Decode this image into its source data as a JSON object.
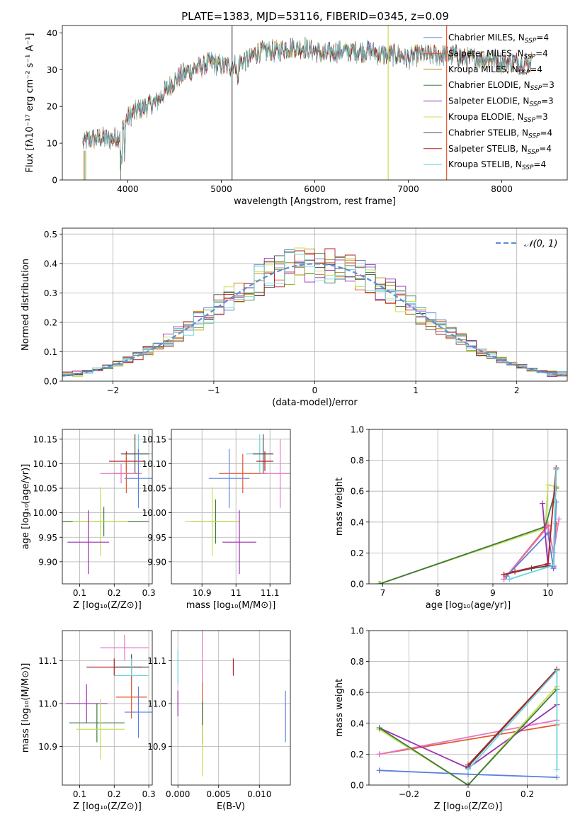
{
  "figure": {
    "title": "PLATE=1383, MJD=53116, FIBERID=0345, z=0.09"
  },
  "colors": {
    "chabrier_miles": "#4a7fbf",
    "salpeter_miles": "#e4572e",
    "kroupa_miles": "#b8860b",
    "chabrier_elodie": "#3d7a3d",
    "salpeter_elodie": "#9b30b0",
    "kroupa_elodie": "#c7df53",
    "chabrier_stelib": "#4d4d4d",
    "salpeter_stelib": "#b22222",
    "kroupa_stelib": "#6fd3df",
    "pink": "#e377c2",
    "blue2": "#5b7fde",
    "gauss": "#5b8fd6",
    "grid": "#b0b0b0"
  },
  "chart_data": [
    {
      "id": "spectrum",
      "type": "line",
      "xlabel": "wavelength [Angstrom, rest frame]",
      "ylabel": "Flux [fλ10⁻¹⁷ erg cm⁻² s⁻¹ A⁻¹]",
      "xlim": [
        3300,
        8700
      ],
      "ylim": [
        0,
        42
      ],
      "xticks": [
        4000,
        5000,
        6000,
        7000,
        8000
      ],
      "yticks": [
        0,
        10,
        20,
        30,
        40
      ],
      "grid": false,
      "legend_position": "top-right",
      "continuum": {
        "x": [
          3500,
          3600,
          3700,
          3800,
          3900,
          3950,
          4000,
          4100,
          4200,
          4300,
          4400,
          4500,
          4600,
          4700,
          4800,
          4900,
          5000,
          5100,
          5200,
          5300,
          5400,
          5500,
          5600,
          5700,
          5800,
          5900,
          6000,
          6100,
          6200,
          6300,
          6400,
          6500,
          6600,
          6700,
          6800,
          6900,
          7000,
          7100,
          7200,
          7300,
          7400,
          7500,
          7600,
          7700,
          7800,
          7900,
          8000,
          8100,
          8200,
          8300
        ],
        "y": [
          10,
          11,
          11.5,
          11,
          12,
          14,
          17,
          19,
          20,
          21,
          24,
          27,
          29,
          30,
          31,
          32,
          31,
          31,
          32,
          33,
          35,
          35,
          35,
          36,
          36,
          36,
          35,
          34,
          35,
          35,
          35,
          35,
          35,
          34,
          34,
          34,
          33,
          34,
          34,
          34,
          34,
          34,
          33,
          33,
          33,
          33,
          32,
          32,
          32,
          32
        ]
      },
      "series": [
        {
          "name": "Chabrier MILES, N$_{SSP}$=4",
          "label_main": "Chabrier MILES, N",
          "label_sub": "SSP",
          "label_tail": "=4",
          "color_key": "chabrier_miles"
        },
        {
          "name": "Salpeter MILES, N$_{SSP}$=4",
          "label_main": "Salpeter MILES, N",
          "label_sub": "SSP",
          "label_tail": "=4",
          "color_key": "salpeter_miles"
        },
        {
          "name": "Kroupa MILES, N$_{SSP}$=4",
          "label_main": "Kroupa MILES, N",
          "label_sub": "SSP",
          "label_tail": "=4",
          "color_key": "kroupa_miles"
        },
        {
          "name": "Chabrier ELODIE, N$_{SSP}$=3",
          "label_main": "Chabrier ELODIE, N",
          "label_sub": "SSP",
          "label_tail": "=3",
          "color_key": "chabrier_elodie"
        },
        {
          "name": "Salpeter ELODIE, N$_{SSP}$=3",
          "label_main": "Salpeter ELODIE, N",
          "label_sub": "SSP",
          "label_tail": "=3",
          "color_key": "salpeter_elodie"
        },
        {
          "name": "Kroupa ELODIE, N$_{SSP}$=3",
          "label_main": "Kroupa ELODIE, N",
          "label_sub": "SSP",
          "label_tail": "=3",
          "color_key": "kroupa_elodie"
        },
        {
          "name": "Chabrier STELIB, N$_{SSP}$=4",
          "label_main": "Chabrier STELIB, N",
          "label_sub": "SSP",
          "label_tail": "=4",
          "color_key": "chabrier_stelib"
        },
        {
          "name": "Salpeter STELIB, N$_{SSP}$=4",
          "label_main": "Salpeter STELIB, N",
          "label_sub": "SSP",
          "label_tail": "=4",
          "color_key": "salpeter_stelib"
        },
        {
          "name": "Kroupa STELIB, N$_{SSP}$=4",
          "label_main": "Kroupa STELIB, N",
          "label_sub": "SSP",
          "label_tail": "=4",
          "color_key": "kroupa_stelib"
        }
      ],
      "vertical_lines": [
        {
          "x": 5115,
          "color_key": "chabrier_stelib"
        },
        {
          "x": 6785,
          "color_key": "kroupa_elodie"
        },
        {
          "x": 7410,
          "color_key": "salpeter_miles"
        }
      ]
    },
    {
      "id": "residuals",
      "type": "line",
      "xlabel": "(data-model)/error",
      "ylabel": "Normed distribution",
      "xlim": [
        -2.5,
        2.5
      ],
      "ylim": [
        0,
        0.52
      ],
      "xticks": [
        -2,
        -1,
        0,
        1,
        2
      ],
      "yticks": [
        0.0,
        0.1,
        0.2,
        0.3,
        0.4,
        0.5
      ],
      "grid": true,
      "legend_position": "top-right",
      "gaussian_label": "𝒩(0, 1)",
      "bin_width": 0.1
    },
    {
      "id": "age_vs_Z",
      "type": "scatter",
      "xlabel": "Z [log₁₀(Z/Z⊙)]",
      "ylabel": "age  [log₁₀(age/yr)]",
      "xlim": [
        0.05,
        0.31
      ],
      "ylim": [
        9.855,
        10.17
      ],
      "xticks": [
        0.1,
        0.2,
        0.3
      ],
      "yticks": [
        9.9,
        9.95,
        10.0,
        10.05,
        10.1,
        10.15
      ],
      "grid": true,
      "points": [
        {
          "x": 0.27,
          "xerr": 0.05,
          "y": 10.12,
          "yerr": 0.04,
          "color_key": "kroupa_stelib"
        },
        {
          "x": 0.26,
          "xerr": 0.04,
          "y": 10.12,
          "yerr": 0.04,
          "color_key": "chabrier_stelib"
        },
        {
          "x": 0.235,
          "xerr": 0.05,
          "y": 10.105,
          "yerr": 0.02,
          "color_key": "salpeter_stelib"
        },
        {
          "x": 0.235,
          "xerr": 0.035,
          "y": 10.08,
          "yerr": 0.04,
          "color_key": "salpeter_miles"
        },
        {
          "x": 0.22,
          "xerr": 0.06,
          "y": 10.08,
          "yerr": 0.02,
          "color_key": "pink"
        },
        {
          "x": 0.27,
          "xerr": 0.04,
          "y": 10.07,
          "yerr": 0.06,
          "color_key": "blue2"
        },
        {
          "x": 0.17,
          "xerr": 0.13,
          "y": 9.982,
          "yerr": 0.03,
          "color_key": "chabrier_elodie"
        },
        {
          "x": 0.16,
          "xerr": 0.08,
          "y": 9.982,
          "yerr": 0.07,
          "color_key": "kroupa_elodie"
        },
        {
          "x": 0.125,
          "xerr": 0.06,
          "y": 9.94,
          "yerr": 0.065,
          "color_key": "salpeter_elodie"
        }
      ]
    },
    {
      "id": "age_vs_mass",
      "type": "scatter",
      "xlabel": "mass [log₁₀(M/M⊙)]",
      "ylabel": "",
      "xlim": [
        10.81,
        11.16
      ],
      "ylim": [
        9.855,
        10.17
      ],
      "xticks": [
        10.9,
        11.0,
        11.1
      ],
      "yticks": [
        9.9,
        9.95,
        10.0,
        10.05,
        10.1,
        10.15
      ],
      "grid": true,
      "points": [
        {
          "x": 11.07,
          "xerr": 0.04,
          "y": 10.12,
          "yerr": 0.04,
          "color_key": "kroupa_stelib"
        },
        {
          "x": 11.08,
          "xerr": 0.03,
          "y": 10.12,
          "yerr": 0.04,
          "color_key": "chabrier_stelib"
        },
        {
          "x": 11.085,
          "xerr": 0.025,
          "y": 10.105,
          "yerr": 0.02,
          "color_key": "salpeter_stelib"
        },
        {
          "x": 11.02,
          "xerr": 0.07,
          "y": 10.08,
          "yerr": 0.04,
          "color_key": "salpeter_miles"
        },
        {
          "x": 11.13,
          "xerr": 0.06,
          "y": 10.08,
          "yerr": 0.07,
          "color_key": "pink"
        },
        {
          "x": 10.98,
          "xerr": 0.06,
          "y": 10.07,
          "yerr": 0.06,
          "color_key": "blue2"
        },
        {
          "x": 10.94,
          "xerr": 0.07,
          "y": 9.982,
          "yerr": 0.045,
          "color_key": "chabrier_elodie"
        },
        {
          "x": 10.93,
          "xerr": 0.08,
          "y": 9.982,
          "yerr": 0.07,
          "color_key": "kroupa_elodie"
        },
        {
          "x": 11.01,
          "xerr": 0.05,
          "y": 9.94,
          "yerr": 0.065,
          "color_key": "salpeter_elodie"
        }
      ]
    },
    {
      "id": "weight_vs_age",
      "type": "line",
      "xlabel": "age  [log₁₀(age/yr)]",
      "ylabel": "mass weight",
      "xlim": [
        6.75,
        10.35
      ],
      "ylim": [
        0,
        1.0
      ],
      "xticks": [
        7,
        8,
        9,
        10
      ],
      "yticks": [
        0.0,
        0.2,
        0.4,
        0.6,
        0.8,
        1.0
      ],
      "grid": true,
      "series": [
        {
          "color_key": "kroupa_elodie",
          "x": [
            6.93,
            9.95,
            10.0,
            10.15
          ],
          "y": [
            0.0,
            0.36,
            0.64,
            0.63
          ]
        },
        {
          "color_key": "chabrier_elodie",
          "x": [
            6.95,
            9.95,
            10.15
          ],
          "y": [
            0.0,
            0.37,
            0.62
          ]
        },
        {
          "color_key": "salpeter_miles",
          "x": [
            9.2,
            10.0,
            10.1,
            10.15
          ],
          "y": [
            0.03,
            0.38,
            0.2,
            0.39
          ]
        },
        {
          "color_key": "pink",
          "x": [
            9.2,
            10.0,
            10.1,
            10.2
          ],
          "y": [
            0.03,
            0.37,
            0.2,
            0.42
          ]
        },
        {
          "color_key": "blue2",
          "x": [
            9.25,
            10.0,
            10.1,
            10.15
          ],
          "y": [
            0.05,
            0.33,
            0.1,
            0.53
          ]
        },
        {
          "color_key": "salpeter_elodie",
          "x": [
            9.9,
            10.0,
            10.1
          ],
          "y": [
            0.52,
            0.12,
            0.11
          ]
        },
        {
          "color_key": "chabrier_stelib",
          "x": [
            9.2,
            9.7,
            10.1,
            10.15
          ],
          "y": [
            0.06,
            0.1,
            0.12,
            0.75
          ]
        },
        {
          "color_key": "salpeter_stelib",
          "x": [
            9.2,
            9.4,
            10.0,
            10.15
          ],
          "y": [
            0.06,
            0.08,
            0.13,
            0.75
          ]
        },
        {
          "color_key": "kroupa_stelib",
          "x": [
            9.3,
            10.1,
            10.15
          ],
          "y": [
            0.03,
            0.12,
            0.74
          ]
        }
      ]
    },
    {
      "id": "mass_vs_Z",
      "type": "scatter",
      "xlabel": "Z [log₁₀(Z/Z⊙)]",
      "ylabel": "mass [log₁₀(M/M⊙)]",
      "xlim": [
        0.05,
        0.31
      ],
      "ylim": [
        10.81,
        11.17
      ],
      "xticks": [
        0.1,
        0.2,
        0.3
      ],
      "yticks": [
        10.9,
        11.0,
        11.1
      ],
      "grid": true,
      "points": [
        {
          "x": 0.23,
          "xerr": 0.07,
          "y": 11.13,
          "yerr": 0.03,
          "color_key": "pink"
        },
        {
          "x": 0.2,
          "xerr": 0.08,
          "y": 11.085,
          "yerr": 0.02,
          "color_key": "salpeter_stelib"
        },
        {
          "x": 0.25,
          "xerr": 0.05,
          "y": 11.085,
          "yerr": 0.03,
          "color_key": "chabrier_stelib"
        },
        {
          "x": 0.25,
          "xerr": 0.05,
          "y": 11.065,
          "yerr": 0.04,
          "color_key": "kroupa_stelib"
        },
        {
          "x": 0.12,
          "xerr": 0.06,
          "y": 11.0,
          "yerr": 0.045,
          "color_key": "salpeter_elodie"
        },
        {
          "x": 0.25,
          "xerr": 0.045,
          "y": 11.015,
          "yerr": 0.05,
          "color_key": "salpeter_miles"
        },
        {
          "x": 0.27,
          "xerr": 0.04,
          "y": 10.98,
          "yerr": 0.06,
          "color_key": "blue2"
        },
        {
          "x": 0.15,
          "xerr": 0.08,
          "y": 10.955,
          "yerr": 0.045,
          "color_key": "chabrier_elodie"
        },
        {
          "x": 0.16,
          "xerr": 0.07,
          "y": 10.94,
          "yerr": 0.07,
          "color_key": "kroupa_elodie"
        }
      ]
    },
    {
      "id": "mass_vs_ebv",
      "type": "scatter",
      "xlabel": "E(B-V)",
      "ylabel": "",
      "xlim": [
        -0.0008,
        0.0138
      ],
      "ylim": [
        10.81,
        11.17
      ],
      "xticks": [
        0.0,
        0.005,
        0.01
      ],
      "xtick_labels": [
        "0.000",
        "0.005",
        "0.010"
      ],
      "yticks": [
        10.9,
        11.0,
        11.1
      ],
      "grid": true,
      "points": [
        {
          "x": 0.003,
          "xerr": 0,
          "y": 11.11,
          "yerr": 0.06,
          "color_key": "pink"
        },
        {
          "x": 0.0068,
          "xerr": 0,
          "y": 11.085,
          "yerr": 0.02,
          "color_key": "salpeter_stelib"
        },
        {
          "x": 0.0,
          "xerr": 0,
          "y": 11.085,
          "yerr": 0.04,
          "color_key": "kroupa_stelib"
        },
        {
          "x": 0.0,
          "xerr": 0,
          "y": 11.0,
          "yerr": 0.03,
          "color_key": "salpeter_elodie"
        },
        {
          "x": 0.003,
          "xerr": 0,
          "y": 11.0,
          "yerr": 0.05,
          "color_key": "salpeter_miles"
        },
        {
          "x": 0.0132,
          "xerr": 0,
          "y": 10.97,
          "yerr": 0.06,
          "color_key": "blue2"
        },
        {
          "x": 0.003,
          "xerr": 0,
          "y": 10.955,
          "yerr": 0.05,
          "color_key": "chabrier_elodie"
        },
        {
          "x": 0.003,
          "xerr": 0,
          "y": 10.89,
          "yerr": 0.06,
          "color_key": "kroupa_elodie"
        }
      ]
    },
    {
      "id": "weight_vs_Z",
      "type": "line",
      "xlabel": "Z [log₁₀(Z/Z⊙)]",
      "ylabel": "mass weight",
      "xlim": [
        -0.335,
        0.335
      ],
      "ylim": [
        0,
        1.0
      ],
      "xticks": [
        -0.2,
        0.0,
        0.2
      ],
      "yticks": [
        0.0,
        0.2,
        0.4,
        0.6,
        0.8,
        1.0
      ],
      "grid": true,
      "series": [
        {
          "color_key": "blue2",
          "x": [
            -0.3,
            0.0,
            0.3
          ],
          "y": [
            0.095,
            0.07,
            0.05
          ]
        },
        {
          "color_key": "salpeter_miles",
          "x": [
            -0.3,
            0.3
          ],
          "y": [
            0.2,
            0.39
          ]
        },
        {
          "color_key": "pink",
          "x": [
            -0.3,
            0.3
          ],
          "y": [
            0.2,
            0.42
          ]
        },
        {
          "color_key": "salpeter_elodie",
          "x": [
            -0.3,
            0.0,
            0.3
          ],
          "y": [
            0.37,
            0.11,
            0.52
          ]
        },
        {
          "color_key": "kroupa_elodie",
          "x": [
            -0.3,
            0.0,
            0.3
          ],
          "y": [
            0.36,
            0.0,
            0.64
          ]
        },
        {
          "color_key": "chabrier_elodie",
          "x": [
            -0.3,
            0.0,
            0.3
          ],
          "y": [
            0.37,
            0.0,
            0.62
          ]
        },
        {
          "color_key": "chabrier_stelib",
          "x": [
            0.0,
            0.3
          ],
          "y": [
            0.12,
            0.75
          ]
        },
        {
          "color_key": "salpeter_stelib",
          "x": [
            0.0,
            0.3
          ],
          "y": [
            0.13,
            0.75
          ]
        },
        {
          "color_key": "kroupa_stelib",
          "x": [
            0.0,
            0.3,
            0.3
          ],
          "y": [
            0.1,
            0.74,
            0.1
          ]
        }
      ]
    }
  ]
}
